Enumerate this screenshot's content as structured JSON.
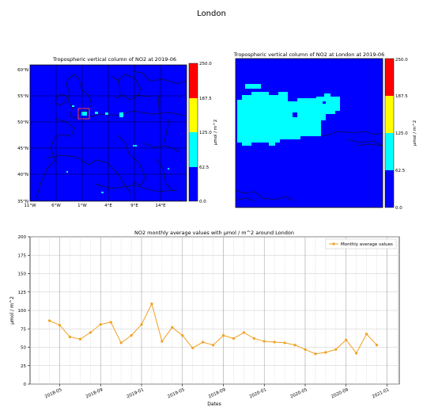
{
  "page_title": "London",
  "maps": {
    "left": {
      "title": "Tropospheric vertical column of NO2 at 2019-06",
      "lat_ticks": [
        "60°N",
        "55°N",
        "50°N",
        "45°N",
        "40°N",
        "35°N"
      ],
      "lon_ticks": [
        "11°W",
        "6°W",
        "1°W",
        "4°E",
        "9°E",
        "14°E"
      ],
      "colorbar_ticks": [
        "250.0",
        "187.5",
        "125.0",
        "62.5",
        "0.0"
      ],
      "colorbar_label": "µmol / m^2"
    },
    "right": {
      "title": "Tropospheric vertical column of NO2 at London at 2019-06",
      "colorbar_ticks": [
        "250.0",
        "187.5",
        "125.0",
        "62.5",
        "0.0"
      ],
      "colorbar_label": "µmol / m^2"
    },
    "colors": {
      "ocean": "#0000e6",
      "low": "#0000ff",
      "mid": "#00ffff",
      "high": "#ffff00",
      "max": "#ff0000",
      "highlight_box": "#ff3b3b"
    }
  },
  "chart_data": {
    "type": "line",
    "title": "NO2 monthly average values with µmol / m^2 around London",
    "xlabel": "Dates",
    "ylabel": "µmol / m^2",
    "ylim": [
      0,
      200
    ],
    "yticks": [
      0,
      25,
      50,
      75,
      100,
      125,
      150,
      175,
      200
    ],
    "xticks": [
      "2018-05",
      "2018-09",
      "2019-01",
      "2019-05",
      "2019-09",
      "2020-01",
      "2020-05",
      "2020-09",
      "2021-01"
    ],
    "grid": true,
    "legend_position": "top-right",
    "color": "#f0a020",
    "series": [
      {
        "name": "Monthly average values",
        "x": [
          "2018-04",
          "2018-05",
          "2018-06",
          "2018-07",
          "2018-08",
          "2018-09",
          "2018-10",
          "2018-11",
          "2018-12",
          "2019-01",
          "2019-02",
          "2019-03",
          "2019-04",
          "2019-05",
          "2019-06",
          "2019-07",
          "2019-08",
          "2019-09",
          "2019-10",
          "2019-11",
          "2019-12",
          "2020-01",
          "2020-02",
          "2020-03",
          "2020-04",
          "2020-05",
          "2020-06",
          "2020-07",
          "2020-08",
          "2020-09",
          "2020-10",
          "2020-11",
          "2020-12"
        ],
        "values": [
          86,
          80,
          64,
          61,
          70,
          81,
          84,
          56,
          66,
          81,
          109,
          58,
          77,
          66,
          49,
          57,
          53,
          66,
          62,
          70,
          62,
          58,
          57,
          56,
          53,
          47,
          41,
          43,
          47,
          60,
          42,
          68,
          53
        ]
      }
    ]
  }
}
